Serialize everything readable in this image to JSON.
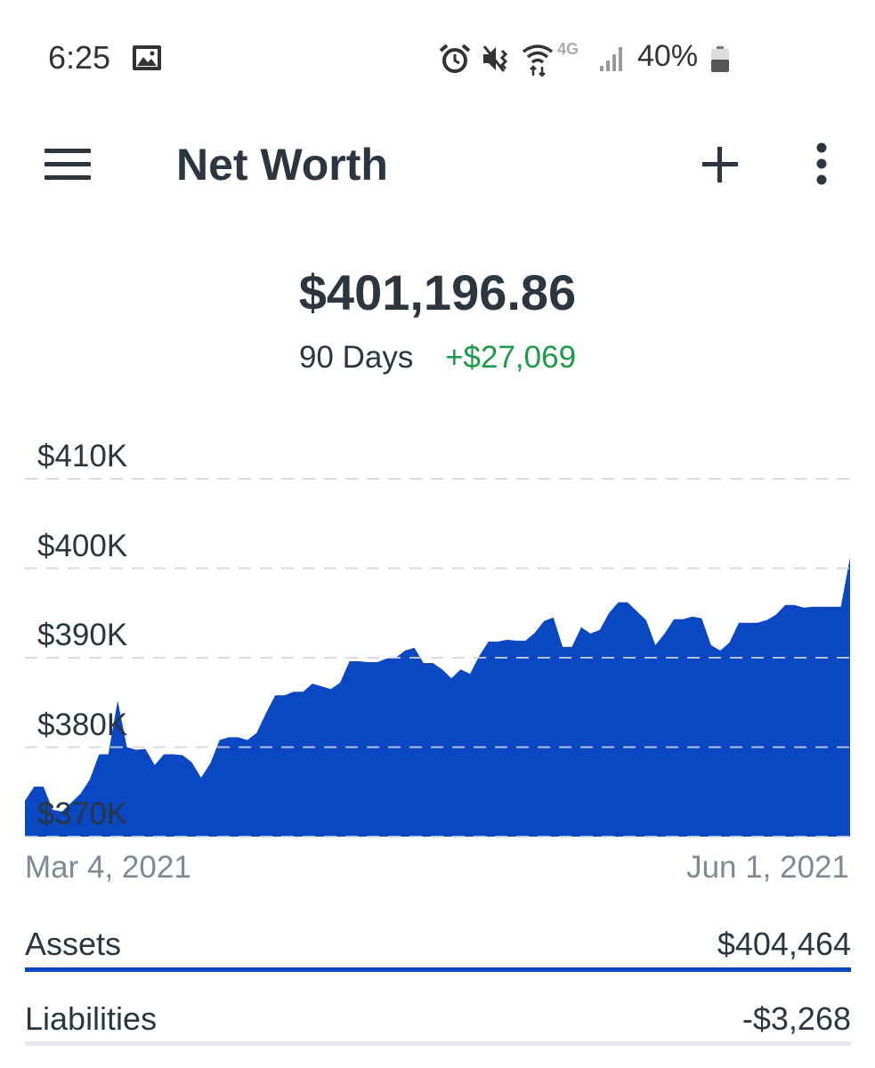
{
  "status_bar": {
    "time": "6:25",
    "network": "4G",
    "battery": "40%",
    "icons": [
      "image-icon",
      "alarm-icon",
      "mute-vibrate-icon",
      "wifi-icon",
      "4g-lte-icon",
      "signal-icon",
      "battery-icon"
    ]
  },
  "app_bar": {
    "title": "Net Worth",
    "icons": [
      "menu-icon",
      "plus-icon",
      "more-vertical-icon"
    ]
  },
  "summary": {
    "net_worth": "$401,196.86",
    "period": "90 Days",
    "change": "+$27,069"
  },
  "colors": {
    "accent": "#0a47c2",
    "positive": "#1b9a4a",
    "text": "#2b3640",
    "muted": "#7d8a93"
  },
  "chart_data": {
    "type": "area",
    "x_start_label": "Mar 4, 2021",
    "x_end_label": "Jun 1, 2021",
    "y_tick_labels": [
      "$410K",
      "$400K",
      "$390K",
      "$380K",
      "$370K"
    ],
    "y_ticks": [
      410000,
      400000,
      390000,
      380000,
      370000
    ],
    "ylim": [
      370000,
      410000
    ],
    "grid": "horizontal dashed",
    "series": [
      {
        "values": [
          374000,
          375600,
          375600,
          373000,
          372800,
          373800,
          374800,
          376400,
          379200,
          379200,
          385200,
          380000,
          379700,
          379800,
          378000,
          379200,
          379200,
          379100,
          378300,
          376600,
          378200,
          380800,
          381100,
          381100,
          380800,
          381600,
          383800,
          385800,
          385800,
          386200,
          386200,
          387100,
          386800,
          386500,
          387200,
          389600,
          389600,
          389500,
          389500,
          389900,
          390000,
          390800,
          391100,
          389400,
          389400,
          388700,
          387700,
          388700,
          388200,
          390200,
          391800,
          391800,
          392000,
          391900,
          391900,
          392800,
          394100,
          394500,
          391200,
          391200,
          393400,
          392700,
          393100,
          395000,
          396200,
          396200,
          395200,
          394200,
          391400,
          392700,
          394300,
          394300,
          394600,
          394400,
          391400,
          390800,
          391700,
          393900,
          393900,
          393900,
          394200,
          394800,
          395900,
          395900,
          395600,
          395700,
          395700,
          395700,
          395700,
          401200
        ]
      }
    ]
  },
  "balances": {
    "assets_label": "Assets",
    "assets_value": "$404,464",
    "liabilities_label": "Liabilities",
    "liabilities_value": "-$3,268"
  }
}
